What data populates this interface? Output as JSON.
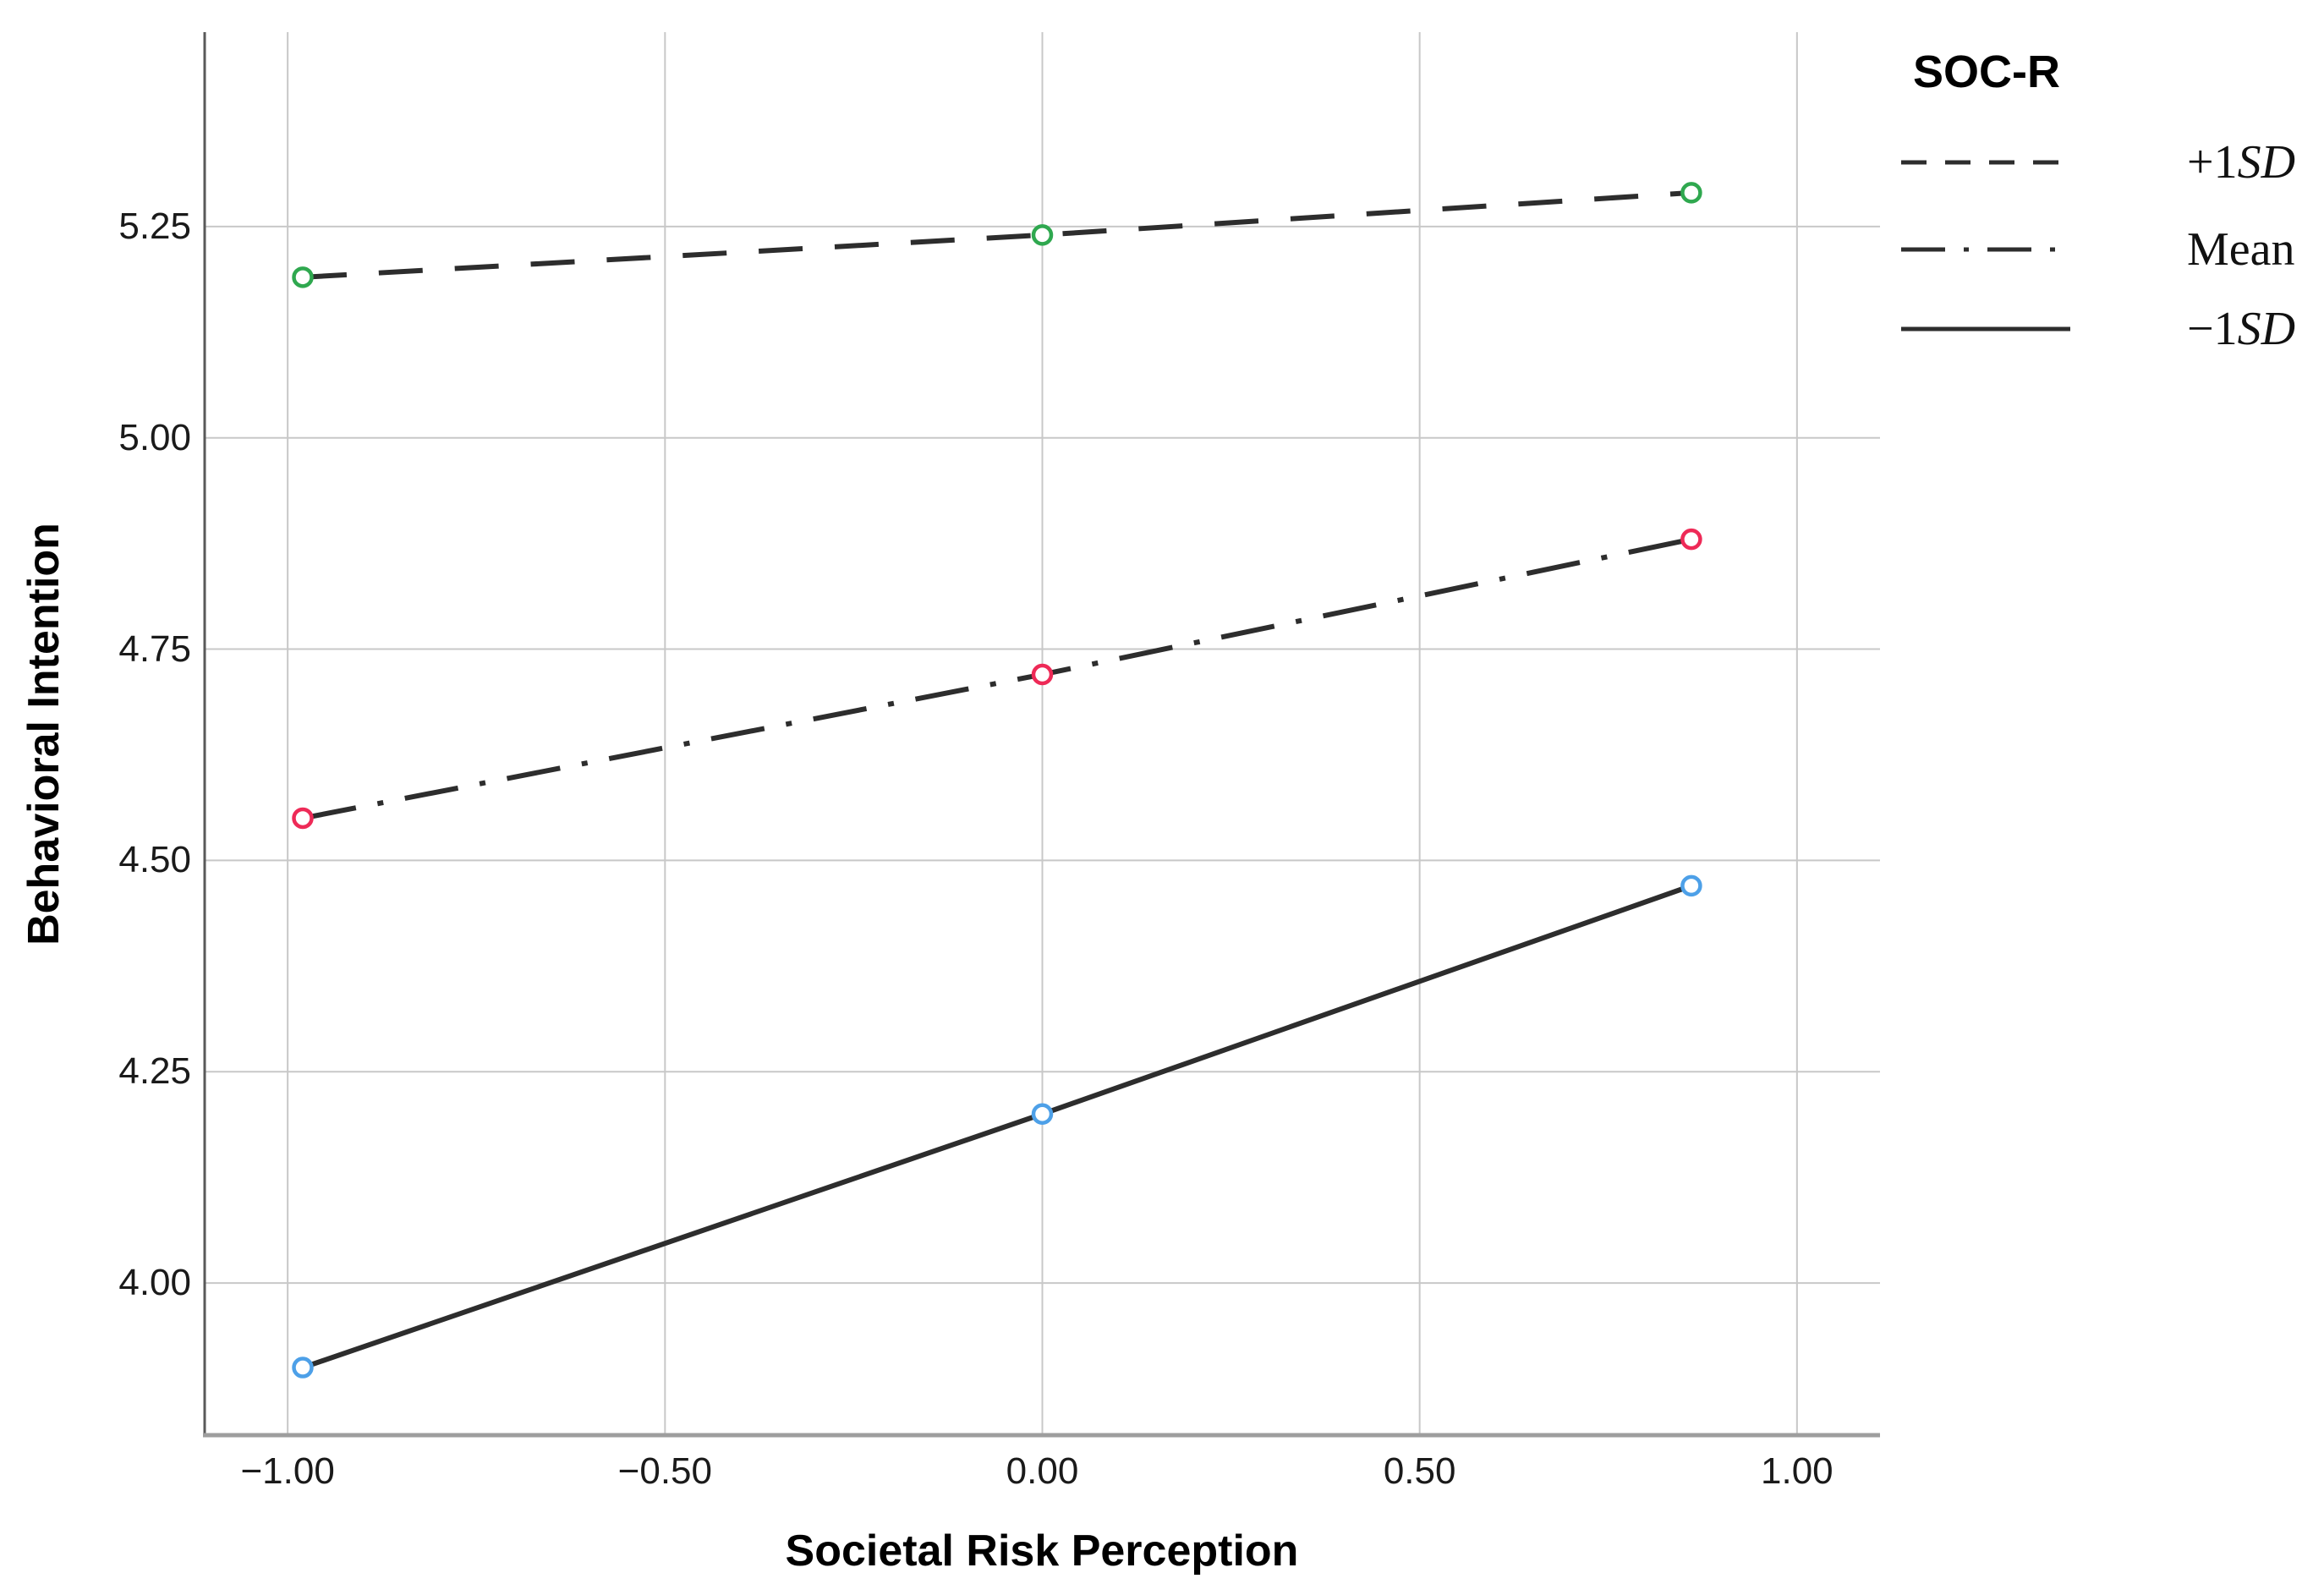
{
  "chart_data": {
    "type": "line",
    "title": "",
    "xlabel": "Societal Risk Perception",
    "ylabel": "Behavioral Intention",
    "xlim": [
      -1.11,
      1.11
    ],
    "ylim": [
      3.82,
      5.48
    ],
    "grid": true,
    "x_tick_values": [
      -1.0,
      -0.5,
      0.0,
      0.5,
      1.0
    ],
    "x_tick_labels": [
      "−1.00",
      "−0.50",
      "0.00",
      "0.50",
      "1.00"
    ],
    "y_tick_values": [
      4.0,
      4.25,
      4.5,
      4.75,
      5.0,
      5.25
    ],
    "y_tick_labels": [
      "4.00",
      "4.25",
      "4.50",
      "4.75",
      "5.00",
      "5.25"
    ],
    "x": [
      -0.98,
      0.0,
      0.86
    ],
    "series": [
      {
        "name": "+1SD",
        "name_parts": [
          {
            "t": "+1",
            "i": false
          },
          {
            "t": "SD",
            "i": true
          }
        ],
        "line_style": "dashed",
        "line_color": "#2d2d2d",
        "marker": "open-circle",
        "marker_color": "#2fa84f",
        "values": [
          5.19,
          5.24,
          5.29
        ]
      },
      {
        "name": "Mean",
        "name_parts": [
          {
            "t": "Mean",
            "i": false
          }
        ],
        "line_style": "dashdot",
        "line_color": "#2d2d2d",
        "marker": "open-circle",
        "marker_color": "#ee2a57",
        "values": [
          4.55,
          4.72,
          4.88
        ]
      },
      {
        "name": "−1SD",
        "name_parts": [
          {
            "t": "−1",
            "i": false
          },
          {
            "t": "SD",
            "i": true
          }
        ],
        "line_style": "solid",
        "line_color": "#2d2d2d",
        "marker": "open-circle",
        "marker_color": "#4da0e8",
        "values": [
          3.9,
          4.2,
          4.47
        ]
      }
    ],
    "legend": {
      "title": "SOC-R",
      "position": "top-right-outside"
    },
    "colors": {
      "gridline": "#c8c8c8",
      "left_axis": "#595959",
      "bottom_axis": "#9e9e9e",
      "tick_text": "#1a1a1a"
    }
  }
}
